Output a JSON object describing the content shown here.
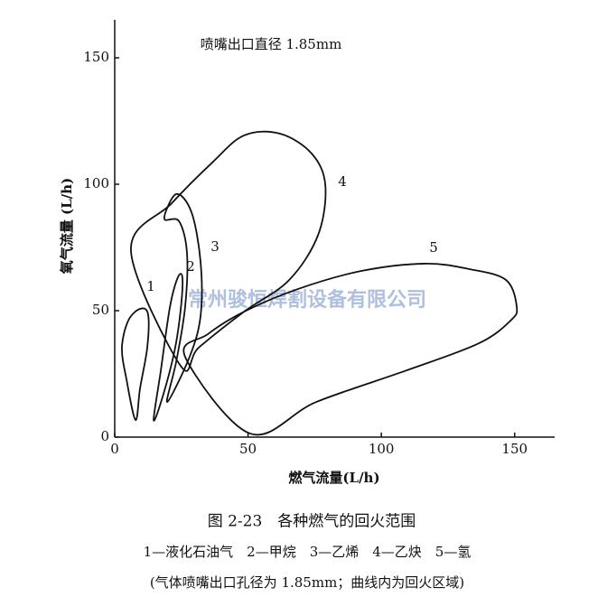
{
  "chart_data": {
    "type": "line",
    "title": "喷嘴出口直径 1.85mm",
    "x_label": "燃气流量(L/h)",
    "y_label": "氧气流量 (L/h)",
    "watermark": "常州骏恒焊割设备有限公司",
    "caption": "图 2-23　各种燃气的回火范围",
    "legend_text": "1—液化石油气　2—甲烷　3—乙烯　4—乙炔　5—氢",
    "note": "(气体喷嘴出口孔径为 1.85mm；曲线内为回火区域)",
    "xlim": [
      0,
      165
    ],
    "ylim": [
      0,
      165
    ],
    "xticks": [
      0,
      50,
      100,
      150
    ],
    "yticks": [
      0,
      50,
      100,
      150
    ],
    "closed": true,
    "series": [
      {
        "name": "1",
        "color": "#111",
        "x": [
          7.8,
          4.4,
          2.7,
          5.1,
          9.5,
          12.5,
          12.2,
          9.5
        ],
        "values": [
          6.8,
          22.9,
          35.4,
          46.1,
          50.7,
          48.6,
          35.4,
          19.3
        ]
      },
      {
        "name": "2",
        "color": "#111",
        "x": [
          14.6,
          17.3,
          20.7,
          23.7,
          25.4,
          24.7,
          22.4,
          17.9
        ],
        "values": [
          6.8,
          26.4,
          51.4,
          63.2,
          62.9,
          50,
          33.9,
          15.7
        ]
      },
      {
        "name": "3",
        "color": "#111",
        "x": [
          18.6,
          23.1,
          28.8,
          32.2,
          32.2,
          28.1,
          19.7,
          23.1,
          26.4,
          27.1,
          24.1
        ],
        "values": [
          86.4,
          96.1,
          88.9,
          69.3,
          47.9,
          31.8,
          13.9,
          30,
          51.4,
          72.9,
          85.4
        ]
      },
      {
        "name": "4",
        "color": "#111",
        "x": [
          6.1,
          21.4,
          36.6,
          48.5,
          62,
          73.9,
          79,
          76.3,
          65.4,
          48.5,
          31.5,
          24.7
        ],
        "values": [
          73.6,
          92.5,
          108.6,
          119.3,
          120,
          112.1,
          99.6,
          80,
          62.1,
          49.6,
          35.4,
          28.2
        ]
      },
      {
        "name": "5",
        "color": "#111",
        "x": [
          50.8,
          75.6,
          109.5,
          136.6,
          148.5,
          150.8,
          146.8,
          133.2,
          116.3,
          92.5,
          68.8,
          48.5,
          34.9,
          26.4
        ],
        "values": [
          1.4,
          13.9,
          26.4,
          37.1,
          46.1,
          51.4,
          62.1,
          66.4,
          68.6,
          65.7,
          58.6,
          49.6,
          40.7,
          31.8
        ]
      }
    ]
  }
}
